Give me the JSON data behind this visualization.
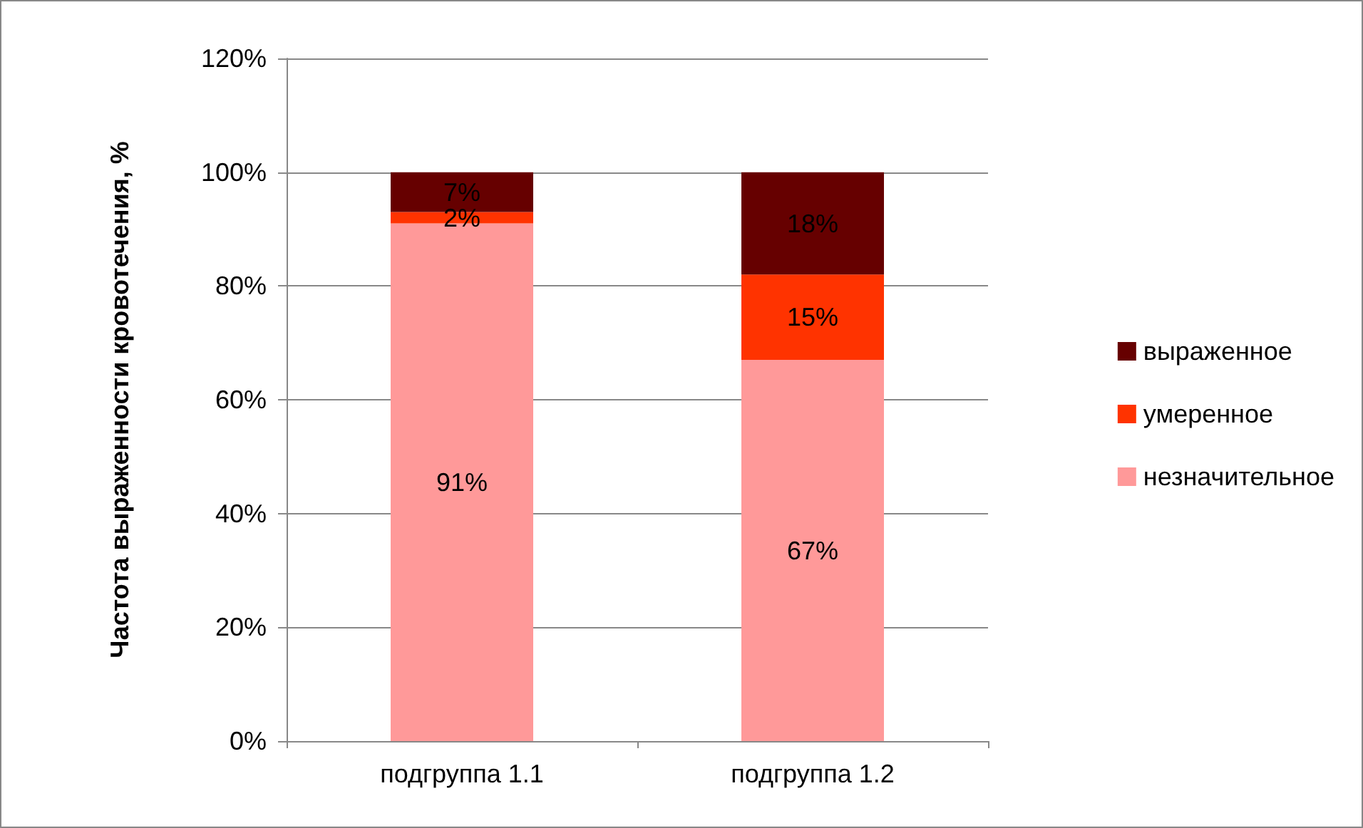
{
  "chart_data": {
    "type": "bar",
    "stacked": true,
    "ylabel": "Частота выраженности кровотечения, %",
    "categories": [
      "подгруппа 1.1",
      "подгруппа 1.2"
    ],
    "series": [
      {
        "name": "незначительное",
        "color": "#ff9999",
        "values": [
          91,
          67
        ],
        "value_labels": [
          "91%",
          "67%"
        ]
      },
      {
        "name": "умеренное",
        "color": "#ff3300",
        "values": [
          2,
          15
        ],
        "value_labels": [
          "2%",
          "15%"
        ]
      },
      {
        "name": "выраженное",
        "color": "#660000",
        "values": [
          7,
          18
        ],
        "value_labels": [
          "7%",
          "18%"
        ]
      }
    ],
    "ylim": [
      0,
      120
    ],
    "yticks": [
      {
        "value": 0,
        "label": "0%"
      },
      {
        "value": 20,
        "label": "20%"
      },
      {
        "value": 40,
        "label": "40%"
      },
      {
        "value": 60,
        "label": "60%"
      },
      {
        "value": 80,
        "label": "80%"
      },
      {
        "value": 100,
        "label": "100%"
      },
      {
        "value": 120,
        "label": "120%"
      }
    ],
    "grid": "y",
    "legend": "right"
  }
}
